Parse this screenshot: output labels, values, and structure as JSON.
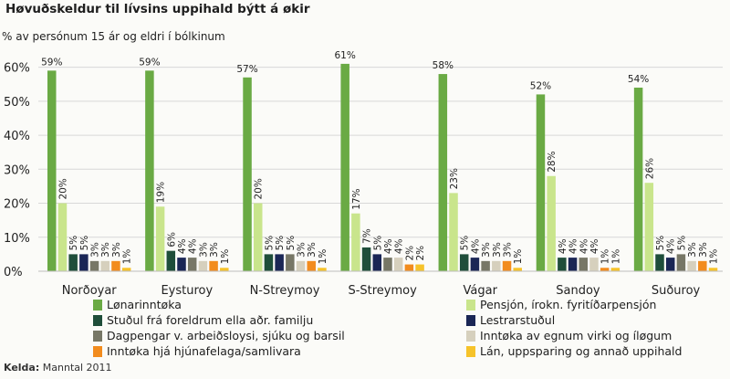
{
  "chart_data": {
    "type": "bar",
    "title": "Høvuðskeldur til lívsins uppihald býtt á økir",
    "subtitle": "% av persónum 15 ár og eldri í bólkinum",
    "source_label": "Kelda:",
    "source_value": "Manntal 2011",
    "ylim": [
      0,
      65
    ],
    "yticks": [
      0,
      10,
      20,
      30,
      40,
      50,
      60
    ],
    "ytick_labels": [
      "0%",
      "10%",
      "20%",
      "30%",
      "40%",
      "50%",
      "60%"
    ],
    "grid": true,
    "legend_position": "bottom",
    "categories": [
      "Norðoyar",
      "Eysturoy",
      "N-Streymoy",
      "S-Streymoy",
      "Vágar",
      "Sandoy",
      "Suðuroy"
    ],
    "series": [
      {
        "name": "Lønarinntøka",
        "color": "#6aaa44",
        "values": [
          59,
          59,
          57,
          61,
          58,
          52,
          54
        ],
        "labels": [
          "59%",
          "59%",
          "57%",
          "61%",
          "58%",
          "52%",
          "54%"
        ]
      },
      {
        "name": "Pensjón, írokn. fyritíðarpensjón",
        "color": "#c9e58c",
        "values": [
          20,
          19,
          20,
          17,
          23,
          28,
          26
        ],
        "labels": [
          "20%",
          "19%",
          "20%",
          "17%",
          "23%",
          "28%",
          "26%"
        ]
      },
      {
        "name": "Stuðul frá foreldrum ella aðr. familju",
        "color": "#1f4e3a",
        "values": [
          5,
          6,
          5,
          7,
          5,
          4,
          5
        ],
        "labels": [
          "5%",
          "6%",
          "5%",
          "7%",
          "5%",
          "4%",
          "5%"
        ]
      },
      {
        "name": "Lestrarstuðul",
        "color": "#1a2655",
        "values": [
          5,
          4,
          5,
          5,
          4,
          4,
          4
        ],
        "labels": [
          "5%",
          "4%",
          "5%",
          "5%",
          "4%",
          "4%",
          "4%"
        ]
      },
      {
        "name": "Dagpengar v. arbeiðsloysi, sjúku og barsil",
        "color": "#777766",
        "values": [
          3,
          4,
          5,
          4,
          3,
          4,
          5
        ],
        "labels": [
          "3%",
          "4%",
          "5%",
          "4%",
          "3%",
          "4%",
          "5%"
        ]
      },
      {
        "name": "Inntøka av egnum virki og íløgum",
        "color": "#d6d0bd",
        "values": [
          3,
          3,
          3,
          4,
          3,
          4,
          3
        ],
        "labels": [
          "3%",
          "3%",
          "3%",
          "4%",
          "3%",
          "4%",
          "3%"
        ]
      },
      {
        "name": "Inntøka hjá hjúnafelaga/samlivara",
        "color": "#f28c1e",
        "values": [
          3,
          3,
          3,
          2,
          3,
          1,
          3
        ],
        "labels": [
          "3%",
          "3%",
          "3%",
          "2%",
          "3%",
          "1%",
          "3%"
        ]
      },
      {
        "name": "Lán, uppsparing og annað uppihald",
        "color": "#f6c32a",
        "values": [
          1,
          1,
          1,
          2,
          1,
          1,
          1
        ],
        "labels": [
          "1%",
          "1%",
          "1%",
          "2%",
          "1%",
          "1%",
          "1%"
        ]
      }
    ]
  }
}
